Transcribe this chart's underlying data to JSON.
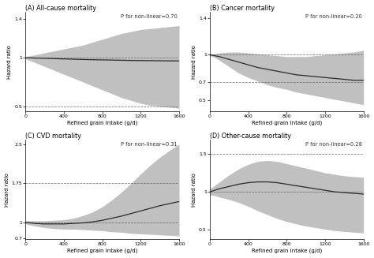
{
  "panels": [
    {
      "title": "(A) All-cause mortality",
      "p_text": "P for non-linear=0.70",
      "ylabel": "Hazard ratio",
      "xlabel": "Refined grain intake (g/d)",
      "xlim": [
        0,
        1600
      ],
      "ylim": [
        0.45,
        1.47
      ],
      "yticks": [
        0.5,
        1.0,
        1.4
      ],
      "ytick_labels": [
        "0.5",
        "1",
        "1.4"
      ],
      "hlines": [
        1.0,
        0.5
      ],
      "curve": {
        "x": [
          0,
          50,
          100,
          200,
          300,
          400,
          500,
          600,
          700,
          800,
          900,
          1000,
          1100,
          1200,
          1300,
          1400,
          1500,
          1600
        ],
        "y": [
          1.0,
          0.999,
          0.997,
          0.994,
          0.991,
          0.988,
          0.985,
          0.982,
          0.98,
          0.978,
          0.976,
          0.974,
          0.972,
          0.971,
          0.97,
          0.969,
          0.968,
          0.968
        ],
        "upper": [
          1.01,
          1.02,
          1.03,
          1.05,
          1.07,
          1.09,
          1.11,
          1.13,
          1.16,
          1.19,
          1.22,
          1.25,
          1.27,
          1.29,
          1.3,
          1.31,
          1.32,
          1.33
        ],
        "lower": [
          0.99,
          0.97,
          0.95,
          0.91,
          0.87,
          0.83,
          0.79,
          0.75,
          0.71,
          0.67,
          0.63,
          0.59,
          0.56,
          0.53,
          0.51,
          0.5,
          0.49,
          0.48
        ]
      }
    },
    {
      "title": "(B) Cancer mortality",
      "p_text": "P for non-linear=0.20",
      "ylabel": "Hazard ratio",
      "xlabel": "Refined grain intake (g/d)",
      "xlim": [
        0,
        1600
      ],
      "ylim": [
        0.38,
        1.47
      ],
      "yticks": [
        0.5,
        0.7,
        1.0,
        1.4
      ],
      "ytick_labels": [
        "0.5",
        "0.7",
        "1",
        "1.4"
      ],
      "hlines": [
        1.0,
        0.7
      ],
      "curve": {
        "x": [
          0,
          50,
          100,
          200,
          300,
          400,
          500,
          600,
          700,
          800,
          900,
          1000,
          1100,
          1200,
          1300,
          1400,
          1500,
          1600
        ],
        "y": [
          1.0,
          0.99,
          0.98,
          0.95,
          0.92,
          0.89,
          0.86,
          0.84,
          0.82,
          0.8,
          0.78,
          0.77,
          0.76,
          0.75,
          0.74,
          0.73,
          0.72,
          0.72
        ],
        "upper": [
          1.01,
          1.01,
          1.02,
          1.03,
          1.03,
          1.02,
          1.01,
          1.0,
          0.99,
          0.98,
          0.98,
          0.98,
          0.99,
          1.0,
          1.01,
          1.02,
          1.03,
          1.05
        ],
        "lower": [
          0.99,
          0.97,
          0.94,
          0.87,
          0.8,
          0.75,
          0.71,
          0.67,
          0.64,
          0.62,
          0.59,
          0.57,
          0.55,
          0.53,
          0.51,
          0.49,
          0.47,
          0.45
        ]
      }
    },
    {
      "title": "(C) CVD mortality",
      "p_text": "P for non-linear=0.31",
      "ylabel": "Hazard ratio",
      "xlabel": "Refined grain intake (g/d)",
      "xlim": [
        0,
        1600
      ],
      "ylim": [
        0.68,
        2.58
      ],
      "yticks": [
        0.7,
        1.0,
        1.75,
        2.5
      ],
      "ytick_labels": [
        "0.7",
        "1",
        "1.75",
        "2.5"
      ],
      "hlines": [
        1.0,
        1.75
      ],
      "curve": {
        "x": [
          0,
          50,
          100,
          200,
          300,
          400,
          500,
          600,
          700,
          800,
          900,
          1000,
          1100,
          1200,
          1300,
          1400,
          1500,
          1600
        ],
        "y": [
          1.0,
          0.99,
          0.98,
          0.97,
          0.97,
          0.97,
          0.98,
          0.99,
          1.01,
          1.04,
          1.08,
          1.12,
          1.17,
          1.22,
          1.27,
          1.32,
          1.36,
          1.4
        ],
        "upper": [
          1.03,
          1.03,
          1.03,
          1.03,
          1.04,
          1.05,
          1.08,
          1.13,
          1.2,
          1.3,
          1.43,
          1.58,
          1.75,
          1.93,
          2.1,
          2.25,
          2.38,
          2.5
        ],
        "lower": [
          0.97,
          0.95,
          0.93,
          0.9,
          0.88,
          0.87,
          0.87,
          0.86,
          0.85,
          0.84,
          0.82,
          0.81,
          0.79,
          0.78,
          0.77,
          0.76,
          0.75,
          0.74
        ]
      }
    },
    {
      "title": "(D) Other-cause mortality",
      "p_text": "P for non-linear=0.28",
      "ylabel": "Hazard ratio",
      "xlabel": "Refined grain intake (g/d)",
      "xlim": [
        0,
        1600
      ],
      "ylim": [
        0.38,
        1.68
      ],
      "yticks": [
        0.5,
        1.0,
        1.5
      ],
      "ytick_labels": [
        "0.5",
        "1",
        "1.5"
      ],
      "hlines": [
        1.0,
        1.5
      ],
      "curve": {
        "x": [
          0,
          50,
          100,
          200,
          300,
          400,
          500,
          600,
          700,
          800,
          900,
          1000,
          1100,
          1200,
          1300,
          1400,
          1500,
          1600
        ],
        "y": [
          1.0,
          1.02,
          1.04,
          1.07,
          1.1,
          1.12,
          1.13,
          1.13,
          1.12,
          1.1,
          1.08,
          1.06,
          1.04,
          1.02,
          1.0,
          0.99,
          0.98,
          0.97
        ],
        "upper": [
          1.04,
          1.08,
          1.13,
          1.22,
          1.3,
          1.36,
          1.4,
          1.41,
          1.4,
          1.37,
          1.34,
          1.31,
          1.28,
          1.25,
          1.23,
          1.21,
          1.2,
          1.19
        ],
        "lower": [
          0.96,
          0.95,
          0.93,
          0.9,
          0.86,
          0.81,
          0.75,
          0.7,
          0.65,
          0.61,
          0.58,
          0.55,
          0.53,
          0.51,
          0.49,
          0.48,
          0.47,
          0.46
        ]
      }
    }
  ],
  "curve_color": "#2a2a2a",
  "fill_color": "#c0c0c0",
  "hline_color": "#666666",
  "background_color": "#ffffff",
  "title_fontsize": 5.8,
  "ptext_fontsize": 4.8,
  "tick_fontsize": 4.5,
  "label_fontsize": 5.0
}
